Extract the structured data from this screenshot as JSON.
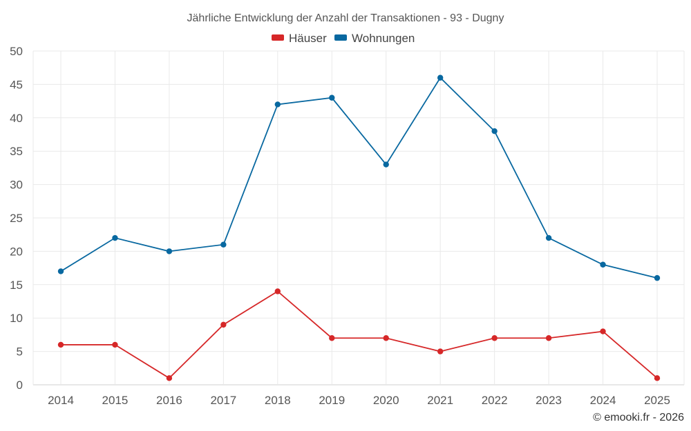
{
  "chart_data": {
    "type": "line",
    "title": "Jährliche Entwicklung der Anzahl der Transaktionen - 93 - Dugny",
    "categories": [
      "2014",
      "2015",
      "2016",
      "2017",
      "2018",
      "2019",
      "2020",
      "2021",
      "2022",
      "2023",
      "2024",
      "2025"
    ],
    "series": [
      {
        "name": "Häuser",
        "color": "#d62728",
        "values": [
          6,
          6,
          1,
          9,
          14,
          7,
          7,
          5,
          7,
          7,
          8,
          1
        ]
      },
      {
        "name": "Wohnungen",
        "color": "#0868a0",
        "values": [
          17,
          22,
          20,
          21,
          42,
          43,
          33,
          46,
          38,
          22,
          18,
          16
        ]
      }
    ],
    "ylim": [
      0,
      50
    ],
    "yticks": [
      "0",
      "5",
      "10",
      "15",
      "20",
      "25",
      "30",
      "35",
      "40",
      "45",
      "50"
    ],
    "xlabel": "",
    "ylabel": "",
    "grid": true,
    "legend": "top-center"
  },
  "credit": "© emooki.fr - 2026"
}
